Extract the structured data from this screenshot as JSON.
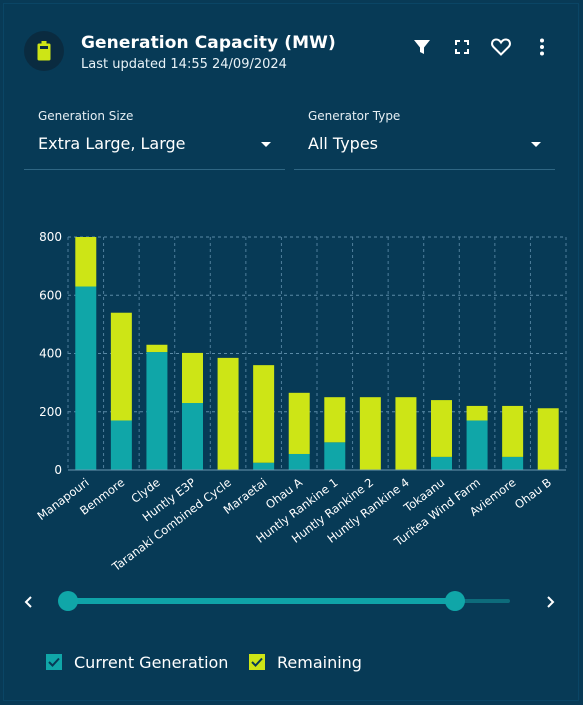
{
  "header": {
    "title": "Generation Capacity (MW)",
    "last_updated": "Last updated 14:55 24/09/2024",
    "icon": "battery-icon",
    "tools": [
      "filter-icon",
      "fullscreen-icon",
      "heart-icon",
      "more-vertical-icon"
    ]
  },
  "filters": {
    "generation_size": {
      "label": "Generation Size",
      "value": "Extra Large, Large"
    },
    "generator_type": {
      "label": "Generator Type",
      "value": "All Types"
    }
  },
  "colors": {
    "background": "#073a56",
    "current": "#10a6a8",
    "remaining": "#cde516"
  },
  "chart_data": {
    "type": "bar",
    "stacked": true,
    "categories": [
      "Manapouri",
      "Benmore",
      "Clyde",
      "Huntly E3P",
      "Taranaki Combined Cycle",
      "Maraetai",
      "Ohau A",
      "Huntly Rankine 1",
      "Huntly Rankine 2",
      "Huntly Rankine 4",
      "Tokaanu",
      "Turitea Wind Farm",
      "Aviemore",
      "Ohau B"
    ],
    "series": [
      {
        "name": "Current Generation",
        "values": [
          630,
          170,
          405,
          230,
          0,
          25,
          55,
          95,
          0,
          0,
          45,
          170,
          45,
          0
        ]
      },
      {
        "name": "Remaining",
        "values": [
          170,
          370,
          25,
          172,
          385,
          335,
          210,
          155,
          250,
          250,
          195,
          50,
          175,
          212
        ]
      }
    ],
    "ylim": [
      0,
      800
    ],
    "yticks": [
      "0",
      "200",
      "400",
      "600",
      "800"
    ],
    "grid": true,
    "legend_position": "bottom-left"
  },
  "legend": {
    "current_label": "Current Generation",
    "remaining_label": "Remaining"
  },
  "slider": {
    "range_start": 0,
    "range_end": 0.88
  }
}
